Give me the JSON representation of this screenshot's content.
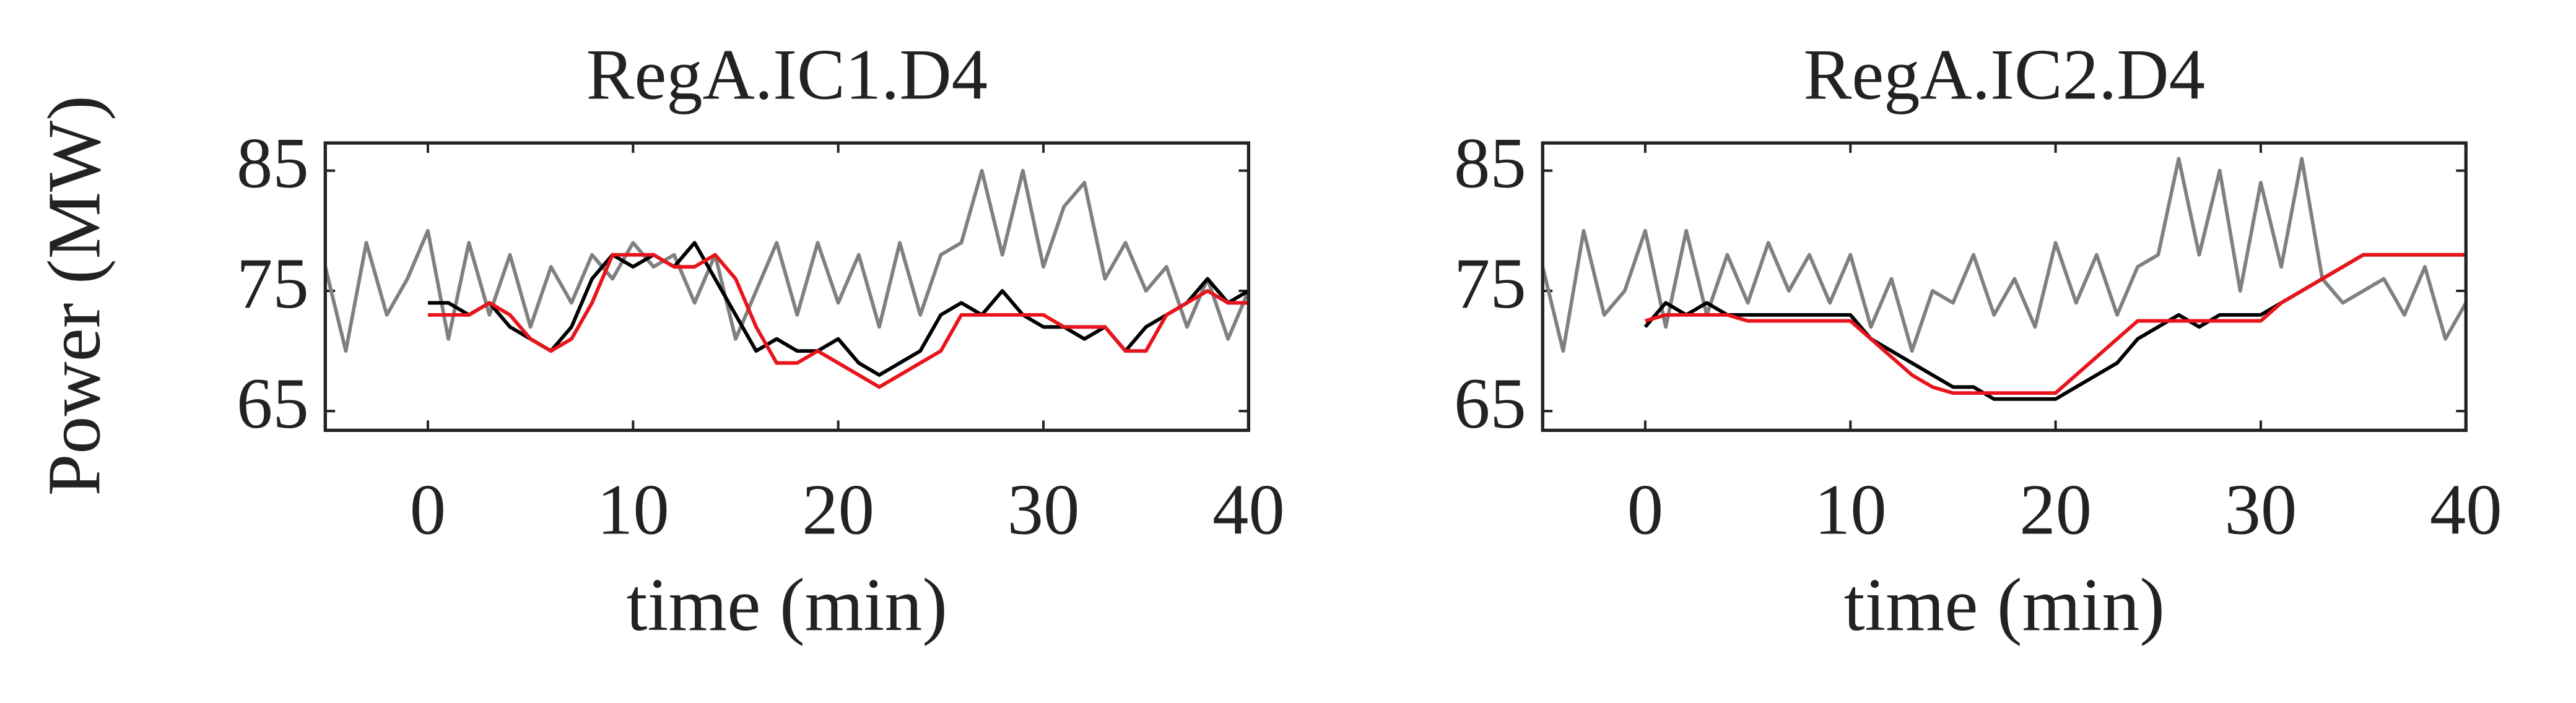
{
  "chart_data": [
    {
      "type": "line",
      "title": "RegA.IC1.D4",
      "xlabel": "time (min)",
      "ylabel": "Power (MW)",
      "x": [
        -5,
        -4,
        -3,
        -2,
        -1,
        0,
        1,
        2,
        3,
        4,
        5,
        6,
        7,
        8,
        9,
        10,
        11,
        12,
        13,
        14,
        15,
        16,
        17,
        18,
        19,
        20,
        21,
        22,
        23,
        24,
        25,
        26,
        27,
        28,
        29,
        30,
        31,
        32,
        33,
        34,
        35,
        36,
        37,
        38,
        39,
        40
      ],
      "xlim": [
        -5,
        40
      ],
      "xticks": [
        0,
        10,
        20,
        30,
        40
      ],
      "ylim": [
        63.4,
        87.3
      ],
      "yticks": [
        65,
        75,
        85
      ],
      "series": [
        {
          "color": "#808080",
          "values": [
            77,
            70,
            79,
            73,
            76,
            80,
            71,
            79,
            73,
            78,
            72,
            77,
            74,
            78,
            76,
            79,
            77,
            78,
            74,
            78,
            71,
            75,
            79,
            73,
            79,
            74,
            78,
            72,
            79,
            73,
            78,
            79,
            85,
            78,
            85,
            77,
            82,
            84,
            76,
            79,
            75,
            77,
            72,
            76,
            71,
            75
          ]
        },
        {
          "color": "#000000",
          "values": [
            null,
            null,
            null,
            null,
            null,
            74,
            74,
            73,
            74,
            72,
            71,
            70,
            72,
            76,
            78,
            77,
            78,
            77,
            79,
            76,
            73,
            70,
            71,
            70,
            70,
            71,
            69,
            68,
            69,
            70,
            73,
            74,
            73,
            75,
            73,
            72,
            72,
            71,
            72,
            70,
            72,
            73,
            74,
            76,
            74,
            75
          ]
        },
        {
          "color": "#e8141b",
          "values": [
            null,
            null,
            null,
            null,
            null,
            73,
            73,
            73,
            74,
            73,
            71,
            70,
            71,
            74,
            78,
            78,
            78,
            77,
            77,
            78,
            76,
            72,
            69,
            69,
            70,
            69,
            68,
            67,
            68,
            69,
            70,
            73,
            73,
            73,
            73,
            73,
            72,
            72,
            72,
            70,
            70,
            73,
            74,
            75,
            74,
            74
          ]
        }
      ]
    },
    {
      "type": "line",
      "title": "RegA.IC2.D4",
      "xlabel": "time (min)",
      "x": [
        -5,
        -4,
        -3,
        -2,
        -1,
        0,
        1,
        2,
        3,
        4,
        5,
        6,
        7,
        8,
        9,
        10,
        11,
        12,
        13,
        14,
        15,
        16,
        17,
        18,
        19,
        20,
        21,
        22,
        23,
        24,
        25,
        26,
        27,
        28,
        29,
        30,
        31,
        32,
        33,
        34,
        35,
        36,
        37,
        38,
        39,
        40
      ],
      "xlim": [
        -5,
        40
      ],
      "xticks": [
        0,
        10,
        20,
        30,
        40
      ],
      "ylim": [
        63.4,
        87.3
      ],
      "yticks": [
        65,
        75,
        85
      ],
      "series": [
        {
          "color": "#808080",
          "values": [
            77,
            70,
            80,
            73,
            75,
            80,
            72,
            80,
            73,
            78,
            74,
            79,
            75,
            78,
            74,
            78,
            72,
            76,
            70,
            75,
            74,
            78,
            73,
            76,
            72,
            79,
            74,
            78,
            73,
            77,
            78,
            86,
            78,
            85,
            75,
            84,
            77,
            86,
            76,
            74,
            75,
            76,
            73,
            77,
            71,
            74
          ]
        },
        {
          "color": "#000000",
          "values": [
            null,
            null,
            null,
            null,
            null,
            72,
            74,
            73,
            74,
            73,
            73,
            73,
            73,
            73,
            73,
            73,
            71,
            70,
            69,
            68,
            67,
            67,
            66,
            66,
            66,
            66,
            67,
            68,
            69,
            71,
            72,
            73,
            72,
            73,
            73,
            73,
            74,
            75,
            76,
            77,
            78,
            78,
            78,
            78,
            78,
            78
          ]
        },
        {
          "color": "#e8141b",
          "values": [
            null,
            null,
            null,
            null,
            null,
            72.5,
            73,
            73,
            73,
            73,
            72.5,
            72.5,
            72.5,
            72.5,
            72.5,
            72.5,
            71,
            69.5,
            68,
            67,
            66.5,
            66.5,
            66.5,
            66.5,
            66.5,
            66.5,
            68,
            69.5,
            71,
            72.5,
            72.5,
            72.5,
            72.5,
            72.5,
            72.5,
            72.5,
            74,
            75,
            76,
            77,
            78,
            78,
            78,
            78,
            78,
            78
          ]
        }
      ]
    }
  ]
}
